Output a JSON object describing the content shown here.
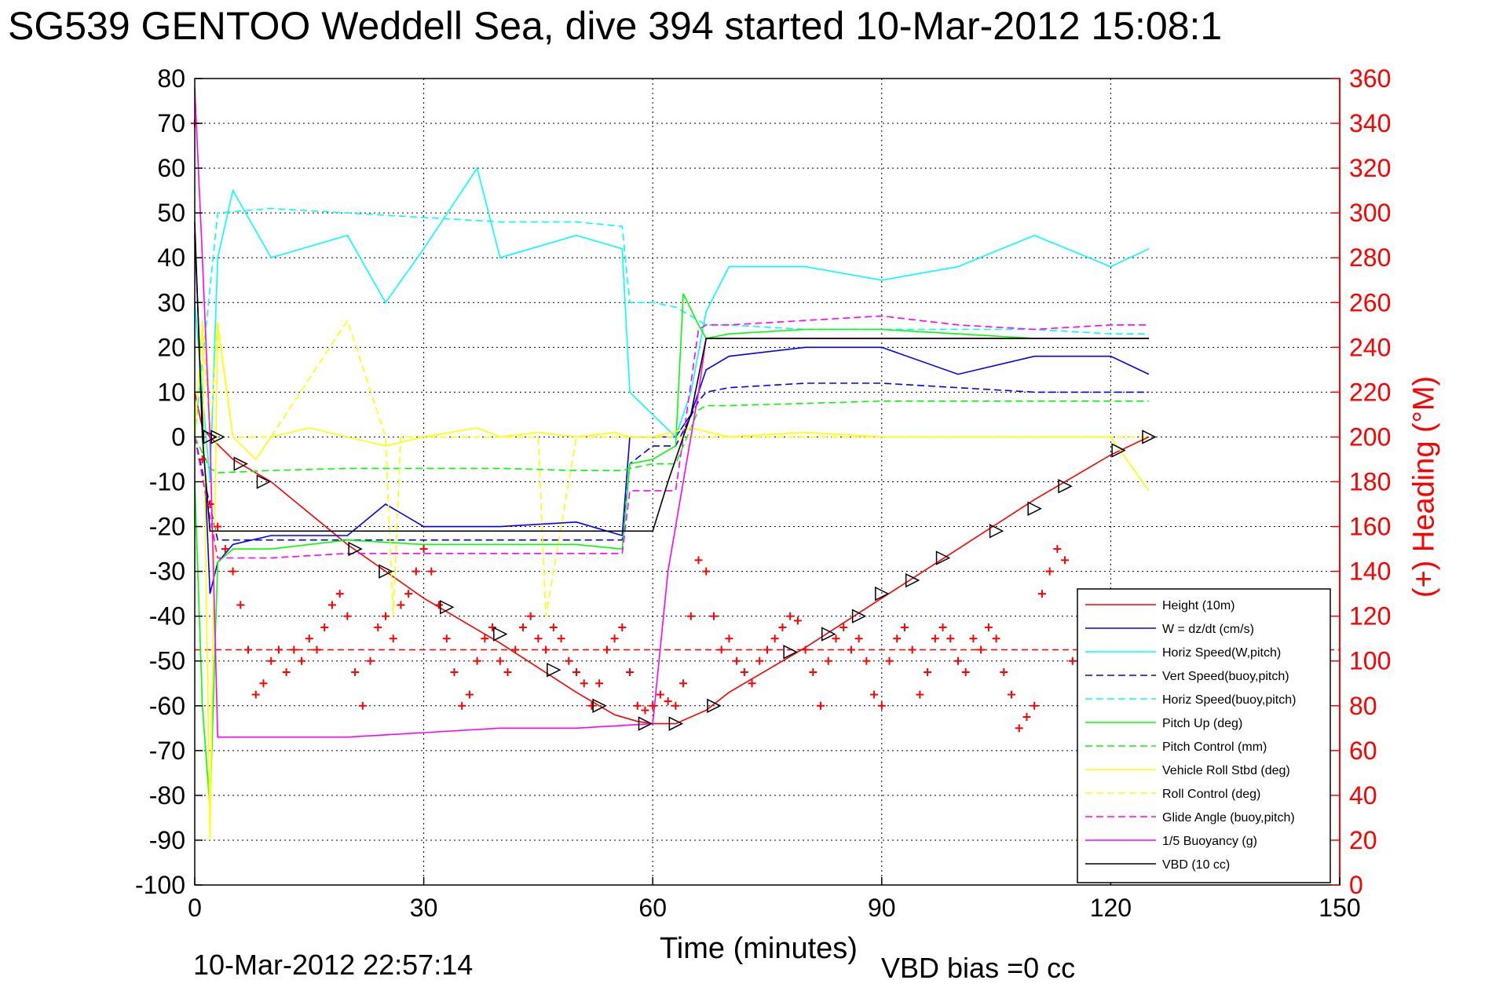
{
  "title": "SG539 GENTOO Weddell Sea, dive 394 started 10-Mar-2012 15:08:1",
  "footer_timestamp": "10-Mar-2012 22:57:14",
  "footer_vbd_bias": "VBD bias =0 cc",
  "chart_data": {
    "type": "line",
    "title": "SG539 GENTOO Weddell Sea, dive 394 started 10-Mar-2012 15:08:1",
    "xlabel": "Time (minutes)",
    "ylabel_left": "",
    "ylabel_right": "(+) Heading (°M)",
    "xlim": [
      0,
      150
    ],
    "ylim_left": [
      -100,
      80
    ],
    "ylim_right": [
      0,
      360
    ],
    "x_ticks": [
      "0",
      "30",
      "60",
      "90",
      "120",
      "150"
    ],
    "x_tick_values": [
      0,
      30,
      60,
      90,
      120,
      150
    ],
    "y_left_ticks": [
      "80",
      "70",
      "60",
      "50",
      "40",
      "30",
      "20",
      "10",
      "0",
      "-10",
      "-20",
      "-30",
      "-40",
      "-50",
      "-60",
      "-70",
      "-80",
      "-90",
      "-100"
    ],
    "y_left_tick_values": [
      80,
      70,
      60,
      50,
      40,
      30,
      20,
      10,
      0,
      -10,
      -20,
      -30,
      -40,
      -50,
      -60,
      -70,
      -80,
      -90,
      -100
    ],
    "y_right_ticks": [
      "360",
      "340",
      "320",
      "300",
      "280",
      "260",
      "240",
      "220",
      "200",
      "180",
      "160",
      "140",
      "120",
      "100",
      "80",
      "60",
      "40",
      "20",
      "0"
    ],
    "y_right_tick_values": [
      360,
      340,
      320,
      300,
      280,
      260,
      240,
      220,
      200,
      180,
      160,
      140,
      120,
      100,
      80,
      60,
      40,
      20,
      0
    ],
    "grid": true,
    "legend_position": "bottom-right",
    "colors": {
      "red": "#ff0000",
      "blue": "#0000ff",
      "cyan": "#00ffff",
      "green": "#00ff00",
      "yellow": "#ffff00",
      "magenta": "#ff00ff",
      "black": "#000000"
    },
    "series": [
      {
        "name": "Height (10m)",
        "color": "#ff0000",
        "dash": "solid",
        "x": [
          0,
          1,
          2,
          5,
          10,
          20,
          30,
          40,
          50,
          55,
          58,
          60,
          63,
          67,
          70,
          80,
          90,
          100,
          110,
          120,
          125
        ],
        "y": [
          10,
          2,
          0,
          -5,
          -10,
          -24,
          -36,
          -46,
          -57,
          -62,
          -63.5,
          -64,
          -64,
          -61,
          -57,
          -47,
          -36,
          -25,
          -14,
          -4,
          0
        ]
      },
      {
        "name": "W = dz/dt (cm/s)",
        "color": "#0000ff",
        "dash": "solid",
        "x": [
          0,
          1,
          2,
          3,
          5,
          10,
          20,
          25,
          30,
          40,
          50,
          56,
          57,
          60,
          63,
          65,
          67,
          70,
          80,
          90,
          100,
          110,
          120,
          125
        ],
        "y": [
          45,
          5,
          -35,
          -28,
          -24,
          -22,
          -22,
          -15,
          -20,
          -20,
          -19,
          -22,
          0,
          0,
          0,
          5,
          15,
          18,
          20,
          20,
          14,
          18,
          18,
          14
        ]
      },
      {
        "name": "Horiz Speed(W,pitch)",
        "color": "#00ffff",
        "dash": "solid",
        "x": [
          0,
          1,
          2,
          3,
          5,
          10,
          20,
          25,
          30,
          37,
          40,
          50,
          56,
          57,
          60,
          63,
          65,
          67,
          70,
          80,
          90,
          100,
          110,
          120,
          125
        ],
        "y": [
          30,
          10,
          -10,
          40,
          55,
          40,
          45,
          30,
          42,
          60,
          40,
          45,
          42,
          10,
          5,
          0,
          10,
          28,
          38,
          38,
          35,
          38,
          45,
          38,
          42
        ]
      },
      {
        "name": "Vert Speed(buoy,pitch)",
        "color": "#0000ff",
        "dash": "dashed",
        "x": [
          0,
          3,
          10,
          20,
          30,
          40,
          50,
          56,
          57,
          60,
          63,
          66,
          67,
          70,
          80,
          90,
          100,
          110,
          120,
          125
        ],
        "y": [
          0,
          -23,
          -23,
          -23,
          -23,
          -23,
          -23,
          -23,
          -6,
          -2,
          -2,
          8,
          10,
          11,
          12,
          12,
          11,
          10,
          10,
          10
        ]
      },
      {
        "name": "Horiz Speed(buoy,pitch)",
        "color": "#00ffff",
        "dash": "dashed",
        "x": [
          0,
          3,
          10,
          20,
          30,
          40,
          50,
          56,
          57,
          60,
          63,
          66,
          67,
          70,
          80,
          90,
          100,
          110,
          120,
          125
        ],
        "y": [
          0,
          50,
          51,
          50,
          49,
          48,
          48,
          47,
          30,
          30,
          29,
          26,
          25,
          25,
          24,
          24,
          24,
          24,
          23,
          23
        ]
      },
      {
        "name": "Pitch Up (deg)",
        "color": "#00ff00",
        "dash": "solid",
        "x": [
          0,
          1,
          2,
          3,
          5,
          10,
          20,
          30,
          40,
          50,
          56,
          57,
          60,
          63,
          64,
          66,
          67,
          70,
          80,
          90,
          100,
          110,
          120,
          125
        ],
        "y": [
          -10,
          -60,
          -83,
          -28,
          -25,
          -25,
          -23,
          -24,
          -24,
          -24,
          -25,
          -6,
          -5,
          -2,
          32,
          25,
          22,
          23,
          24,
          24,
          23,
          22,
          22,
          22
        ]
      },
      {
        "name": "Pitch Control (mm)",
        "color": "#00ff00",
        "dash": "dashed",
        "x": [
          0,
          2,
          3,
          10,
          20,
          30,
          40,
          50,
          56,
          57,
          60,
          63,
          66,
          67,
          70,
          80,
          90,
          100,
          110,
          120,
          125
        ],
        "y": [
          0,
          -7,
          -8,
          -7.5,
          -7,
          -7,
          -7,
          -7.5,
          -7.5,
          -7,
          -6,
          -6,
          6,
          7,
          7,
          7.5,
          8,
          8,
          8,
          8,
          8
        ]
      },
      {
        "name": "Vehicle Roll Stbd (deg)",
        "color": "#ffff00",
        "dash": "solid",
        "x": [
          0,
          1,
          2,
          3,
          5,
          8,
          10,
          15,
          20,
          25,
          30,
          37,
          40,
          45,
          50,
          55,
          57,
          60,
          65,
          70,
          80,
          90,
          100,
          110,
          120,
          125
        ],
        "y": [
          0,
          25,
          -90,
          25,
          0,
          -5,
          0,
          2,
          0,
          -2,
          0,
          2,
          0,
          1,
          0,
          1,
          0,
          0,
          2,
          0,
          1,
          0,
          0,
          0,
          0,
          -12
        ]
      },
      {
        "name": "Roll Control (deg)",
        "color": "#ffff00",
        "dash": "dashed",
        "x": [
          0,
          1,
          2,
          3,
          5,
          10,
          20,
          25,
          26,
          27,
          30,
          40,
          45,
          46,
          50,
          55,
          60,
          70,
          80,
          90,
          100,
          110,
          120,
          125
        ],
        "y": [
          0,
          26,
          0,
          26,
          0,
          0,
          26,
          0,
          -40,
          0,
          0,
          0,
          0,
          -40,
          0,
          0,
          0,
          0,
          0,
          0,
          0,
          0,
          0,
          0
        ]
      },
      {
        "name": "Glide Angle (buoy,pitch)",
        "color": "#ff00ff",
        "dash": "dashed",
        "x": [
          0,
          3,
          10,
          20,
          30,
          40,
          50,
          56,
          57,
          60,
          63,
          66,
          67,
          70,
          80,
          90,
          100,
          110,
          120,
          125
        ],
        "y": [
          0,
          -27,
          -27,
          -26,
          -26,
          -26,
          -26,
          -26,
          -12,
          -12,
          -12,
          24,
          25,
          25,
          26,
          27,
          25,
          24,
          25,
          25
        ]
      },
      {
        "name": "1/5 Buoyancy (g)",
        "color": "#ff00ff",
        "dash": "solid",
        "x": [
          0,
          1,
          2,
          3,
          10,
          20,
          30,
          40,
          50,
          60,
          62,
          65,
          66,
          67,
          70,
          80,
          90,
          100,
          110,
          120,
          125
        ],
        "y": [
          78,
          40,
          0,
          -67,
          -67,
          -67,
          -66,
          -65,
          -65,
          -64,
          -30,
          0,
          10,
          22,
          22,
          22,
          22,
          22,
          22,
          22,
          22
        ]
      },
      {
        "name": "VBD (10 cc)",
        "color": "#000000",
        "dash": "solid",
        "x": [
          0,
          1,
          2,
          3,
          10,
          20,
          30,
          40,
          50,
          59,
          60,
          62,
          65,
          67,
          70,
          80,
          90,
          100,
          110,
          120,
          125
        ],
        "y": [
          48,
          0,
          -21,
          -21,
          -21,
          -21,
          -21,
          -21,
          -21,
          -21,
          -21,
          -10,
          5,
          22,
          22,
          22,
          22,
          22,
          22,
          22,
          22
        ]
      }
    ],
    "heading_markers": {
      "name": "(+) Heading",
      "axis": "right",
      "color": "#ff0000",
      "marker": "+",
      "x": [
        0,
        1,
        2,
        3,
        4,
        5,
        6,
        7,
        8,
        9,
        10,
        11,
        12,
        13,
        14,
        15,
        16,
        17,
        18,
        19,
        20,
        21,
        22,
        23,
        24,
        25,
        26,
        27,
        28,
        29,
        30,
        31,
        32,
        33,
        34,
        35,
        36,
        37,
        38,
        39,
        40,
        41,
        42,
        43,
        44,
        45,
        46,
        47,
        48,
        49,
        50,
        51,
        52,
        53,
        54,
        55,
        56,
        57,
        58,
        59,
        60,
        61,
        62,
        63,
        64,
        65,
        66,
        67,
        68,
        69,
        70,
        71,
        72,
        73,
        74,
        75,
        76,
        77,
        78,
        79,
        80,
        81,
        82,
        83,
        84,
        85,
        86,
        87,
        88,
        89,
        90,
        91,
        92,
        93,
        94,
        95,
        96,
        97,
        98,
        99,
        100,
        101,
        102,
        103,
        104,
        105,
        106,
        107,
        108,
        109,
        110,
        111,
        112,
        113,
        114,
        115
      ],
      "y": [
        340,
        190,
        170,
        160,
        150,
        140,
        125,
        105,
        85,
        90,
        100,
        105,
        95,
        105,
        100,
        110,
        105,
        115,
        125,
        130,
        120,
        95,
        80,
        100,
        115,
        120,
        110,
        125,
        130,
        140,
        150,
        140,
        125,
        110,
        95,
        80,
        85,
        100,
        110,
        115,
        100,
        95,
        105,
        115,
        120,
        110,
        105,
        115,
        110,
        100,
        95,
        90,
        80,
        90,
        105,
        110,
        115,
        95,
        80,
        78,
        80,
        85,
        82,
        80,
        90,
        120,
        145,
        140,
        120,
        105,
        110,
        100,
        95,
        90,
        100,
        105,
        110,
        115,
        120,
        118,
        105,
        95,
        80,
        100,
        110,
        115,
        105,
        110,
        100,
        85,
        80,
        100,
        110,
        115,
        105,
        85,
        95,
        110,
        115,
        110,
        100,
        95,
        110,
        105,
        115,
        110,
        95,
        85,
        70,
        75,
        80,
        130,
        140,
        150,
        145,
        100
      ]
    },
    "reference_line": {
      "axis": "right",
      "value": 105,
      "color": "#ff0000",
      "dash": "dashed"
    },
    "height_markers": {
      "color": "#000000",
      "x": [
        2,
        3,
        6,
        9,
        21,
        25,
        33,
        40,
        47,
        53,
        59,
        63,
        68,
        78,
        83,
        87,
        90,
        94,
        98,
        105,
        110,
        114,
        121,
        125
      ],
      "y": [
        0,
        0,
        -6,
        -10,
        -25,
        -30,
        -38,
        -44,
        -52,
        -60,
        -64,
        -64,
        -60,
        -48,
        -44,
        -40,
        -35,
        -32,
        -27,
        -21,
        -16,
        -11,
        -3,
        0
      ]
    }
  }
}
